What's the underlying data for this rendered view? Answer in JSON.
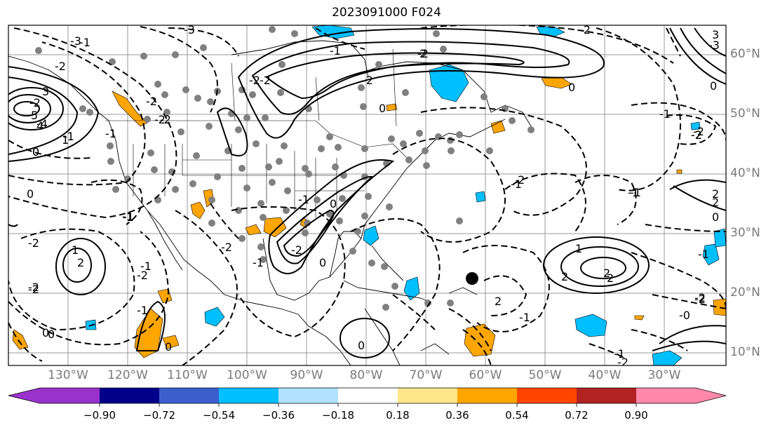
{
  "title": "2023091000 F024",
  "lat_labels": [
    "60°N",
    "50°N",
    "40°N",
    "30°N",
    "20°N",
    "10°N"
  ],
  "lon_labels": [
    "130°W",
    "120°W",
    "110°W",
    "100°W",
    "90°W",
    "80°W",
    "70°W",
    "60°W",
    "50°W",
    "40°W",
    "30°W"
  ],
  "colorbar": {
    "ticks": [
      "−0.90",
      "−0.72",
      "−0.54",
      "−0.36",
      "−0.18",
      "0.18",
      "0.36",
      "0.54",
      "0.72",
      "0.90"
    ],
    "colors": [
      "#9932cc",
      "#00008b",
      "#3a5fcd",
      "#00bfff",
      "#b0e2ff",
      "#ffffff",
      "#ffe68a",
      "#ffa500",
      "#ff4500",
      "#b22222",
      "#ff88aa",
      "#ff88aa"
    ]
  },
  "contour_labels": [
    "-3",
    "-1",
    "-2",
    "-2",
    "-2",
    "3",
    "-4",
    "-2",
    "-1",
    "0",
    "-1",
    "-2",
    "0",
    "-2",
    "-1",
    "-2",
    "0",
    "-1",
    "-2",
    "1",
    "2",
    "0",
    "0",
    "0",
    "-1",
    "-2",
    "-2",
    "-2",
    "-1",
    "-2",
    "0",
    "0",
    "-1",
    "-1",
    "-2",
    "-1",
    "0",
    "-1",
    "-1",
    "-2",
    "-3",
    "3",
    "5",
    "4",
    "0",
    "1",
    "-2",
    "2",
    "2",
    "2",
    "-2",
    "2",
    "-1",
    "0",
    "1",
    "2",
    "2",
    "2",
    "0",
    "-2",
    "-1",
    "-2",
    "-1",
    "-2",
    "2",
    "-2",
    "-2",
    "-1",
    "-1",
    "-2",
    "-0",
    "0",
    "-3"
  ],
  "hurricane_marker": "tropical-cyclone-center"
}
